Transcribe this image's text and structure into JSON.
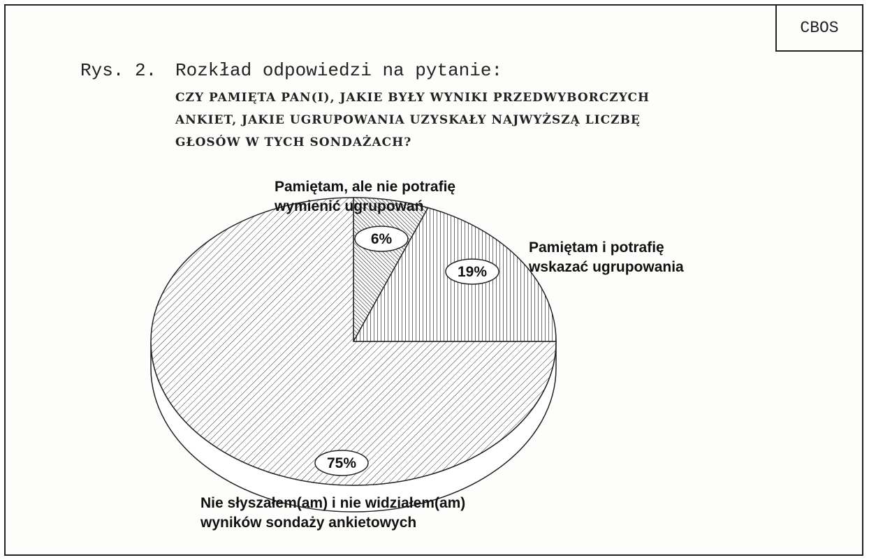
{
  "badge": "CBOS",
  "figure_label": "Rys. 2.",
  "figure_title": "Rozkład odpowiedzi na pytanie:",
  "question_lines": [
    "CZY PAMIĘTA PAN(I), JAKIE BYŁY WYNIKI PRZEDWYBORCZYCH",
    "ANKIET, JAKIE UGRUPOWANIA UZYSKAŁY NAJWYŻSZĄ LICZBĘ",
    "GŁOSÓW W TYCH SONDAŻACH?"
  ],
  "chart_data": {
    "type": "pie",
    "title": "Rozkład odpowiedzi na pytanie:",
    "slices": [
      {
        "label_lines": [
          "Pamiętam, ale nie potrafię",
          "wymienić ugrupowań"
        ],
        "value": 6,
        "value_label": "6%",
        "pattern": "dense-diagonal"
      },
      {
        "label_lines": [
          "Pamiętam i potrafię",
          "wskazać ugrupowania"
        ],
        "value": 19,
        "value_label": "19%",
        "pattern": "vertical-lines"
      },
      {
        "label_lines": [
          "Nie słyszałem(am) i nie widziałem(am)",
          "wyników sondaży ankietowych"
        ],
        "value": 75,
        "value_label": "75%",
        "pattern": "diagonal-lines"
      }
    ],
    "three_d": true,
    "colors": {
      "ink": "#222222",
      "fill": "#ffffff"
    }
  }
}
